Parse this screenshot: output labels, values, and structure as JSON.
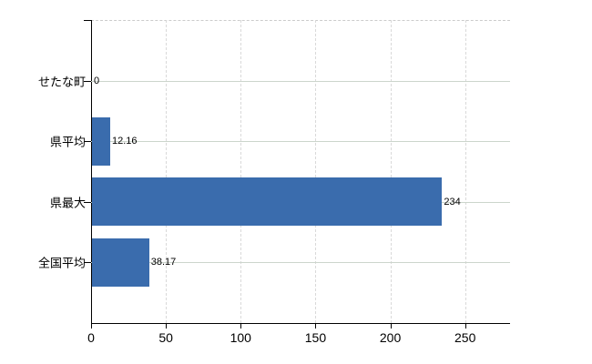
{
  "chart_data": {
    "type": "bar",
    "orientation": "horizontal",
    "title": "",
    "xlabel": "",
    "ylabel": "",
    "categories": [
      "せたな町",
      "県平均",
      "県最大",
      "全国平均"
    ],
    "values": [
      0,
      12.16,
      234,
      38.17
    ],
    "value_labels": [
      "0",
      "12.16",
      "234",
      "38.17"
    ],
    "x_ticks": [
      0,
      50,
      100,
      150,
      200,
      250
    ],
    "x_tick_labels": [
      "0",
      "50",
      "100",
      "150",
      "200",
      "250"
    ],
    "xlim": [
      0,
      280
    ],
    "grid": "on",
    "legend": "none",
    "colors": {
      "bar": "#3a6cad",
      "axis": "#000000",
      "grid_horizontal": "#ccd5cc",
      "grid_vertical": "#d9d9d9",
      "plot_border_top": "#cccccc",
      "text": "#000000",
      "background": "#ffffff"
    }
  }
}
